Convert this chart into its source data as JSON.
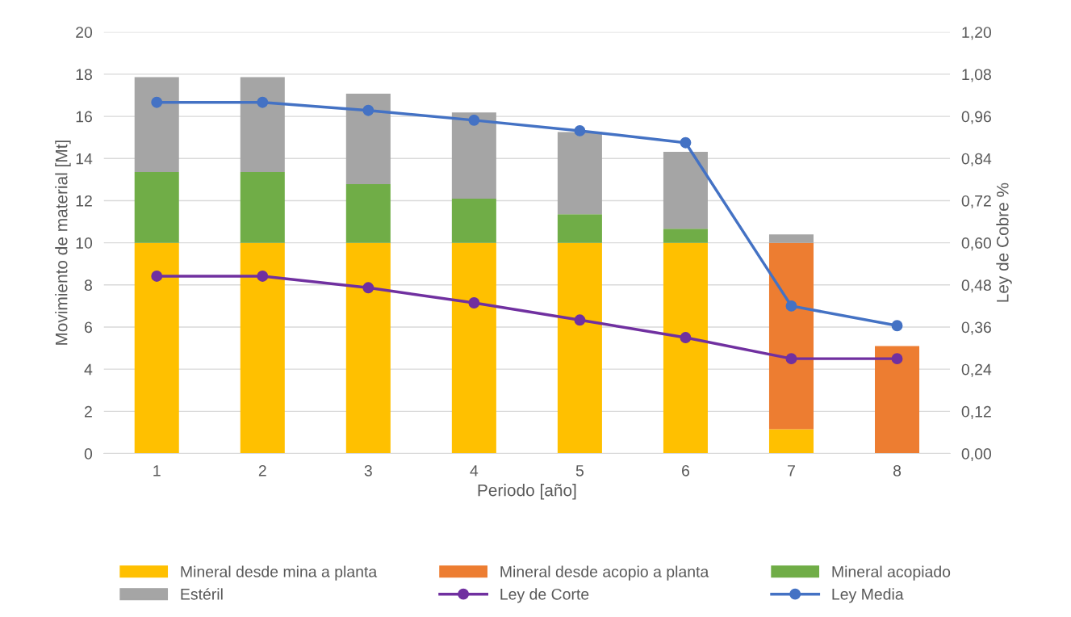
{
  "chart_data": {
    "type": "bar",
    "stacked": true,
    "xlabel": "Periodo [año]",
    "ylabel": "Movimiento de material [Mt]",
    "y2label": "Ley de Cobre %",
    "categories": [
      "1",
      "2",
      "3",
      "4",
      "5",
      "6",
      "7",
      "8"
    ],
    "series": [
      {
        "name": "Mineral desde mina a planta",
        "color": "#ffc000",
        "values": [
          10,
          10,
          10,
          10,
          10,
          10,
          1.15,
          0
        ]
      },
      {
        "name": "Mineral desde acopio a planta",
        "color": "#ed7d31",
        "values": [
          0,
          0,
          0,
          0,
          0,
          0,
          8.85,
          5.1
        ]
      },
      {
        "name": "Mineral acopiado",
        "color": "#70ad47",
        "values": [
          3.36,
          3.36,
          2.78,
          2.09,
          1.36,
          0.67,
          0,
          0
        ]
      },
      {
        "name": "Estéril",
        "color": "#a5a5a5",
        "values": [
          4.5,
          4.5,
          4.3,
          4.1,
          3.9,
          3.65,
          0.4,
          0
        ]
      },
      {
        "name": "Ley de Corte",
        "type": "line",
        "axis": "y2",
        "marker": "circle",
        "color": "#7030a0",
        "values": [
          0.505,
          0.505,
          0.472,
          0.429,
          0.38,
          0.33,
          0.27,
          0.27
        ]
      },
      {
        "name": "Ley Media",
        "type": "line",
        "axis": "y2",
        "marker": "circle",
        "color": "#4472c4",
        "values": [
          1.0,
          1.0,
          0.977,
          0.949,
          0.919,
          0.885,
          0.42,
          0.364
        ]
      }
    ],
    "ylim": [
      0,
      20
    ],
    "yticks": [
      0,
      2,
      4,
      6,
      8,
      10,
      12,
      14,
      16,
      18,
      20
    ],
    "y2lim": [
      0,
      1.2
    ],
    "y2ticks": [
      {
        "value": 0,
        "label": "0,00"
      },
      {
        "value": 0.12,
        "label": "0,12"
      },
      {
        "value": 0.24,
        "label": "0,24"
      },
      {
        "value": 0.36,
        "label": "0,36"
      },
      {
        "value": 0.48,
        "label": "0,48"
      },
      {
        "value": 0.6,
        "label": "0,60"
      },
      {
        "value": 0.72,
        "label": "0,72"
      },
      {
        "value": 0.84,
        "label": "0,84"
      },
      {
        "value": 0.96,
        "label": "0,96"
      },
      {
        "value": 1.08,
        "label": "1,08"
      },
      {
        "value": 1.2,
        "label": "1,20"
      }
    ],
    "grid": "y",
    "legend": "bottom"
  }
}
